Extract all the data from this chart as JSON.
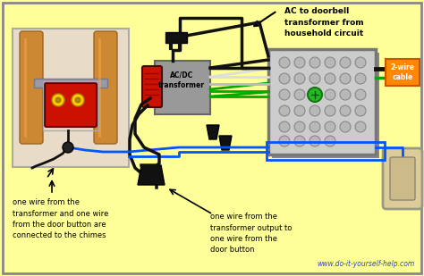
{
  "bg_color": "#FFFF99",
  "title_text": "AC to doorbell\ntransformer from\nhousehold circuit",
  "label1": "one wire from the\ntransformer and one wire\nfrom the door button are\nconnected to the chimes",
  "label2": "one wire from the\ntransformer output to\none wire from the\ndoor button",
  "label3": "2-wire\ncable",
  "website": "www.do-it-yourself-help.com",
  "wire_blue": "#0055FF",
  "wire_green": "#00AA00",
  "wire_black": "#111111",
  "wire_white": "#DDDDDD",
  "box_gray": "#AAAAAA",
  "transformer_red": "#CC1100",
  "chime_bg": "#E8DCC8",
  "tube_color": "#CC8833",
  "label3_bg": "#FF8800",
  "jbox_color": "#C0C0C0",
  "jbox_edge": "#888888"
}
